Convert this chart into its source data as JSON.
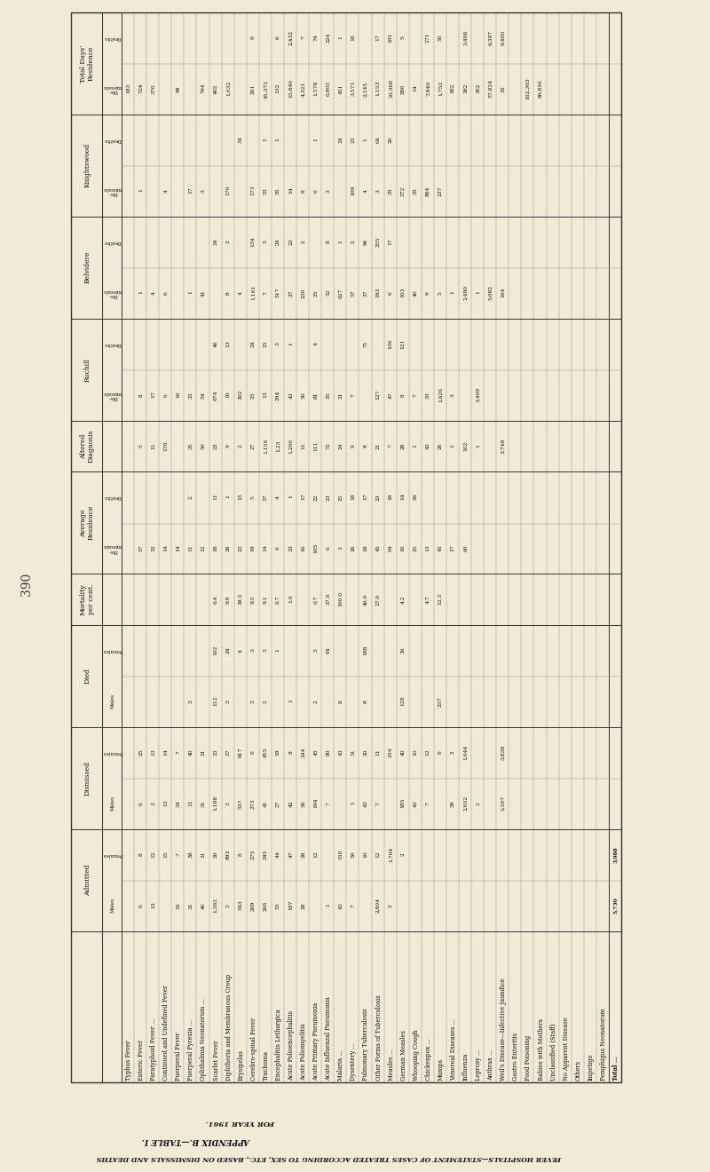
{
  "page_number": "390",
  "bg_color": "#f0ead6",
  "title_line1": "APPENDIX B.—TABLE I.",
  "title_line2": "FEVER HOSPITALS—STATEMENT OF CASES TREATED ACCORDING TO SEX, ETC., BASED ON DISMISSALS AND DEATHS",
  "title_line3": "FOR YEAR 1961.",
  "diseases": [
    "Typhus Fever",
    "Enteric Fever",
    "Paratyphoid Fever ...",
    "Continued and Undefined Fever",
    "Puerperal Fever",
    "Puerperal Pyrexia ...",
    "Ophthalmia Neonatorum ...",
    "Scarlet Fever",
    "Diphtheria and Membranous Croup",
    "Erysipelas",
    "Cerebro-spinal Fever",
    "Trachoma",
    "Encephalitis Lethargica",
    "Acute Polioencephalitis",
    "Acute Poliomyelitis",
    "Acute Primary Pneumonia",
    "Acute Influenzal Pneumonia",
    "Malaria ...",
    "Dysentery ...",
    "Pulmonary Tuberculosis",
    "Other Forms of Tuberculosis",
    "Measles ...",
    "German Measles",
    "Whooping Cough",
    "Chickenpox ...",
    "Mumps",
    "Venereal Diseases ...",
    "Influenza",
    "Leprosy ...",
    "Anthrax ...",
    "Weil's Disease—Infective Jaundice",
    "Gastro Enteritis",
    "Food Poisoning",
    "Babies with Mothers",
    "Unclassified (Staff)",
    "No Apparent Disease",
    "Others",
    "Impetigo",
    "Pemphigus Neonatorum",
    "Total ..."
  ],
  "col_groups": [
    {
      "label": "Admitted",
      "sub_cols": [
        "Males",
        "Females"
      ]
    },
    {
      "label": "Dismissed",
      "sub_cols": [
        "Males",
        "Females"
      ]
    },
    {
      "label": "Died",
      "sub_cols": [
        "Males",
        "Females"
      ]
    },
    {
      "label": "Mortality\nper cent.",
      "sub_cols": [
        ""
      ]
    },
    {
      "label": "Average\nResidence",
      "sub_cols": [
        "Dis-\nmissals",
        "Deaths"
      ]
    },
    {
      "label": "Altered\nDiagnosis",
      "sub_cols": [
        ""
      ]
    },
    {
      "label": "Ruchill",
      "sub_cols": [
        "Dis-\nmissals",
        "Deaths"
      ]
    },
    {
      "label": "Belvidere",
      "sub_cols": [
        "Dis-\nmissals",
        "Deaths"
      ]
    },
    {
      "label": "Knightswood",
      "sub_cols": [
        "Dis-\nmissals",
        "Deaths"
      ]
    },
    {
      "label": "Total Days'\nResidence",
      "sub_cols": [
        "Dis-\nmissals",
        "Deaths"
      ]
    }
  ],
  "col_data": {
    "admitted_males": [
      "",
      "6",
      "13",
      "",
      "33",
      "31",
      "46",
      "1,262",
      "5",
      "543",
      "269",
      "266",
      "53",
      "197",
      "28",
      "",
      "1",
      "43",
      "7",
      "",
      "2,804",
      "2",
      "",
      "",
      "",
      "",
      "",
      "",
      "",
      "",
      "",
      "",
      "",
      "",
      "",
      "",
      "",
      "",
      "",
      "5,730"
    ],
    "admitted_females": [
      "",
      "8",
      "12",
      "15",
      "7",
      "38",
      "21",
      "20",
      "893",
      "8",
      "275",
      "245",
      "44",
      "47",
      "28",
      "12",
      "",
      "150",
      "50",
      "10",
      "12",
      "1,704",
      "2",
      "",
      "",
      "",
      "",
      "",
      "",
      "",
      "",
      "",
      "",
      "",
      "",
      "",
      "",
      "",
      "",
      "3,988"
    ],
    "dismissed_males": [
      "",
      "6",
      "3",
      "13",
      "34",
      "11",
      "31",
      "1,188",
      "3",
      "537",
      "273",
      "41",
      "27",
      "42",
      "56",
      "194",
      "7",
      "",
      "1",
      "43",
      "7",
      "",
      "185",
      "43",
      "7",
      "",
      "39",
      "2,652",
      "2",
      "",
      "5,507"
    ],
    "dismissed_females": [
      "",
      "25",
      "13",
      "14",
      "7",
      "40",
      "21",
      "23",
      "27",
      "817",
      "6",
      "455",
      "18",
      "8",
      "244",
      "45",
      "80",
      "43",
      "31",
      "20",
      "11",
      "154",
      "40",
      "10",
      "12",
      "6",
      "2",
      "1,644",
      "",
      "",
      "3,838"
    ],
    "died_males": [
      "",
      "",
      "",
      "",
      "",
      "3",
      "",
      "112",
      "3",
      "",
      "3",
      "2",
      "",
      "1",
      "",
      "2",
      "",
      "8",
      "",
      "8",
      "",
      "",
      "128",
      "",
      "",
      "257"
    ],
    "died_females": [
      "",
      "",
      "",
      "",
      "",
      "",
      "",
      "102",
      "24",
      "4",
      "3",
      "3",
      "1",
      "",
      "",
      "5",
      "64",
      "",
      "",
      "188",
      "",
      "",
      "36"
    ],
    "mortality": [
      "",
      "",
      "",
      "",
      "",
      "",
      "",
      "6.4",
      "9.9",
      "38.5",
      "9.5",
      "9.1",
      "6.7",
      "1.0",
      "",
      "0.7",
      "37.0",
      "100.0",
      "",
      "40.0",
      "27.0",
      "",
      "4.2",
      "",
      "4.7",
      "12.3"
    ],
    "avg_dismissals": [
      "",
      "57",
      "32",
      "14",
      "14",
      "11",
      "12",
      "18",
      "28",
      "23",
      "19",
      "14",
      "6",
      "33",
      "16",
      "105",
      "6",
      "3",
      "26",
      "18",
      "45",
      "64",
      "16",
      "25",
      "13",
      "45",
      "17",
      "60"
    ],
    "avg_deaths": [
      "",
      "",
      "",
      "",
      "",
      "2",
      "",
      "11",
      "1",
      "15",
      "5",
      "37",
      "4",
      "1",
      "17",
      "22",
      "23",
      "25",
      "18",
      "17",
      "23",
      "18",
      "14",
      "56"
    ],
    "altered_diag": [
      "",
      "5",
      "11",
      "170",
      "",
      "35",
      "50",
      "23",
      "9",
      "2",
      "27",
      "1,156",
      "1,23",
      "1,206",
      "11",
      "111",
      "72",
      "24",
      "9",
      "8",
      "21",
      "7",
      "28",
      "1",
      "43",
      "26",
      "1",
      "102",
      "1",
      "",
      "3,748"
    ],
    "ruchill_dismissals": [
      "",
      "8",
      "17",
      "6",
      "16",
      "33",
      "54",
      "674",
      "10",
      "302",
      "25",
      "13",
      "294",
      "43",
      "56",
      "81",
      "35",
      "21",
      "7",
      "",
      "127",
      "47",
      "8",
      "7",
      "33",
      "1,626",
      "3",
      "",
      "3,409"
    ],
    "ruchill_deaths": [
      "",
      "",
      "",
      "",
      "",
      "",
      "",
      "46",
      "13",
      "",
      "24",
      "25",
      "3",
      "1",
      "",
      "4",
      "",
      "",
      "",
      "71",
      "",
      "136",
      "121"
    ],
    "belvidere_dismissals": [
      "",
      "1",
      "4",
      "6",
      "",
      "1",
      "41",
      "",
      "8",
      "4",
      "1,161",
      "7",
      "517",
      "27",
      "230",
      "25",
      "52",
      "627",
      "57",
      "27",
      "193",
      "6",
      "103",
      "40",
      "9",
      "5",
      "1",
      "2,490",
      "1",
      "5,082",
      "164"
    ],
    "belvidere_deaths": [
      "",
      "",
      "",
      "",
      "",
      "",
      "",
      "24",
      "2",
      "",
      "134",
      "3",
      "24",
      "23",
      "2",
      "",
      "8",
      "1",
      "2",
      "96",
      "255",
      "17"
    ],
    "knightswood_dismissals": [
      "",
      "1",
      "",
      "4",
      "",
      "17",
      "3",
      "",
      "170",
      "",
      "173",
      "33",
      "35",
      "14",
      "8",
      "6",
      "3",
      "",
      "109",
      "4",
      "3",
      "35",
      "272",
      "35",
      "884",
      "237"
    ],
    "knightswood_deaths": [
      "",
      "",
      "",
      "",
      "",
      "",
      "",
      "",
      "",
      "34",
      "",
      "1",
      "1",
      "",
      "",
      "1",
      "",
      "24",
      "23",
      "1",
      "64",
      "20"
    ],
    "total_dismissals": [
      "183",
      "724",
      "370",
      "",
      "99",
      "",
      "794",
      "402",
      "1,032",
      "",
      "201",
      "45,372",
      "132",
      "15,840",
      "4,321",
      "1,578",
      "6,905",
      "451",
      "3,571",
      "2,145",
      "1,153",
      "10,368",
      "286",
      "14",
      "7,840",
      "1,752",
      "382",
      "382",
      "302",
      "57,824",
      "35",
      "",
      "162,303",
      "80,856"
    ],
    "total_deaths": [
      "",
      "",
      "",
      "",
      "",
      "",
      "",
      "",
      "",
      "",
      "9",
      "",
      "6",
      "2,432",
      "7",
      "74",
      "224",
      "1",
      "18",
      "",
      "17",
      "181",
      "5",
      "",
      "171",
      "50",
      "",
      "3,408",
      "",
      "6,397",
      "9,400"
    ]
  }
}
